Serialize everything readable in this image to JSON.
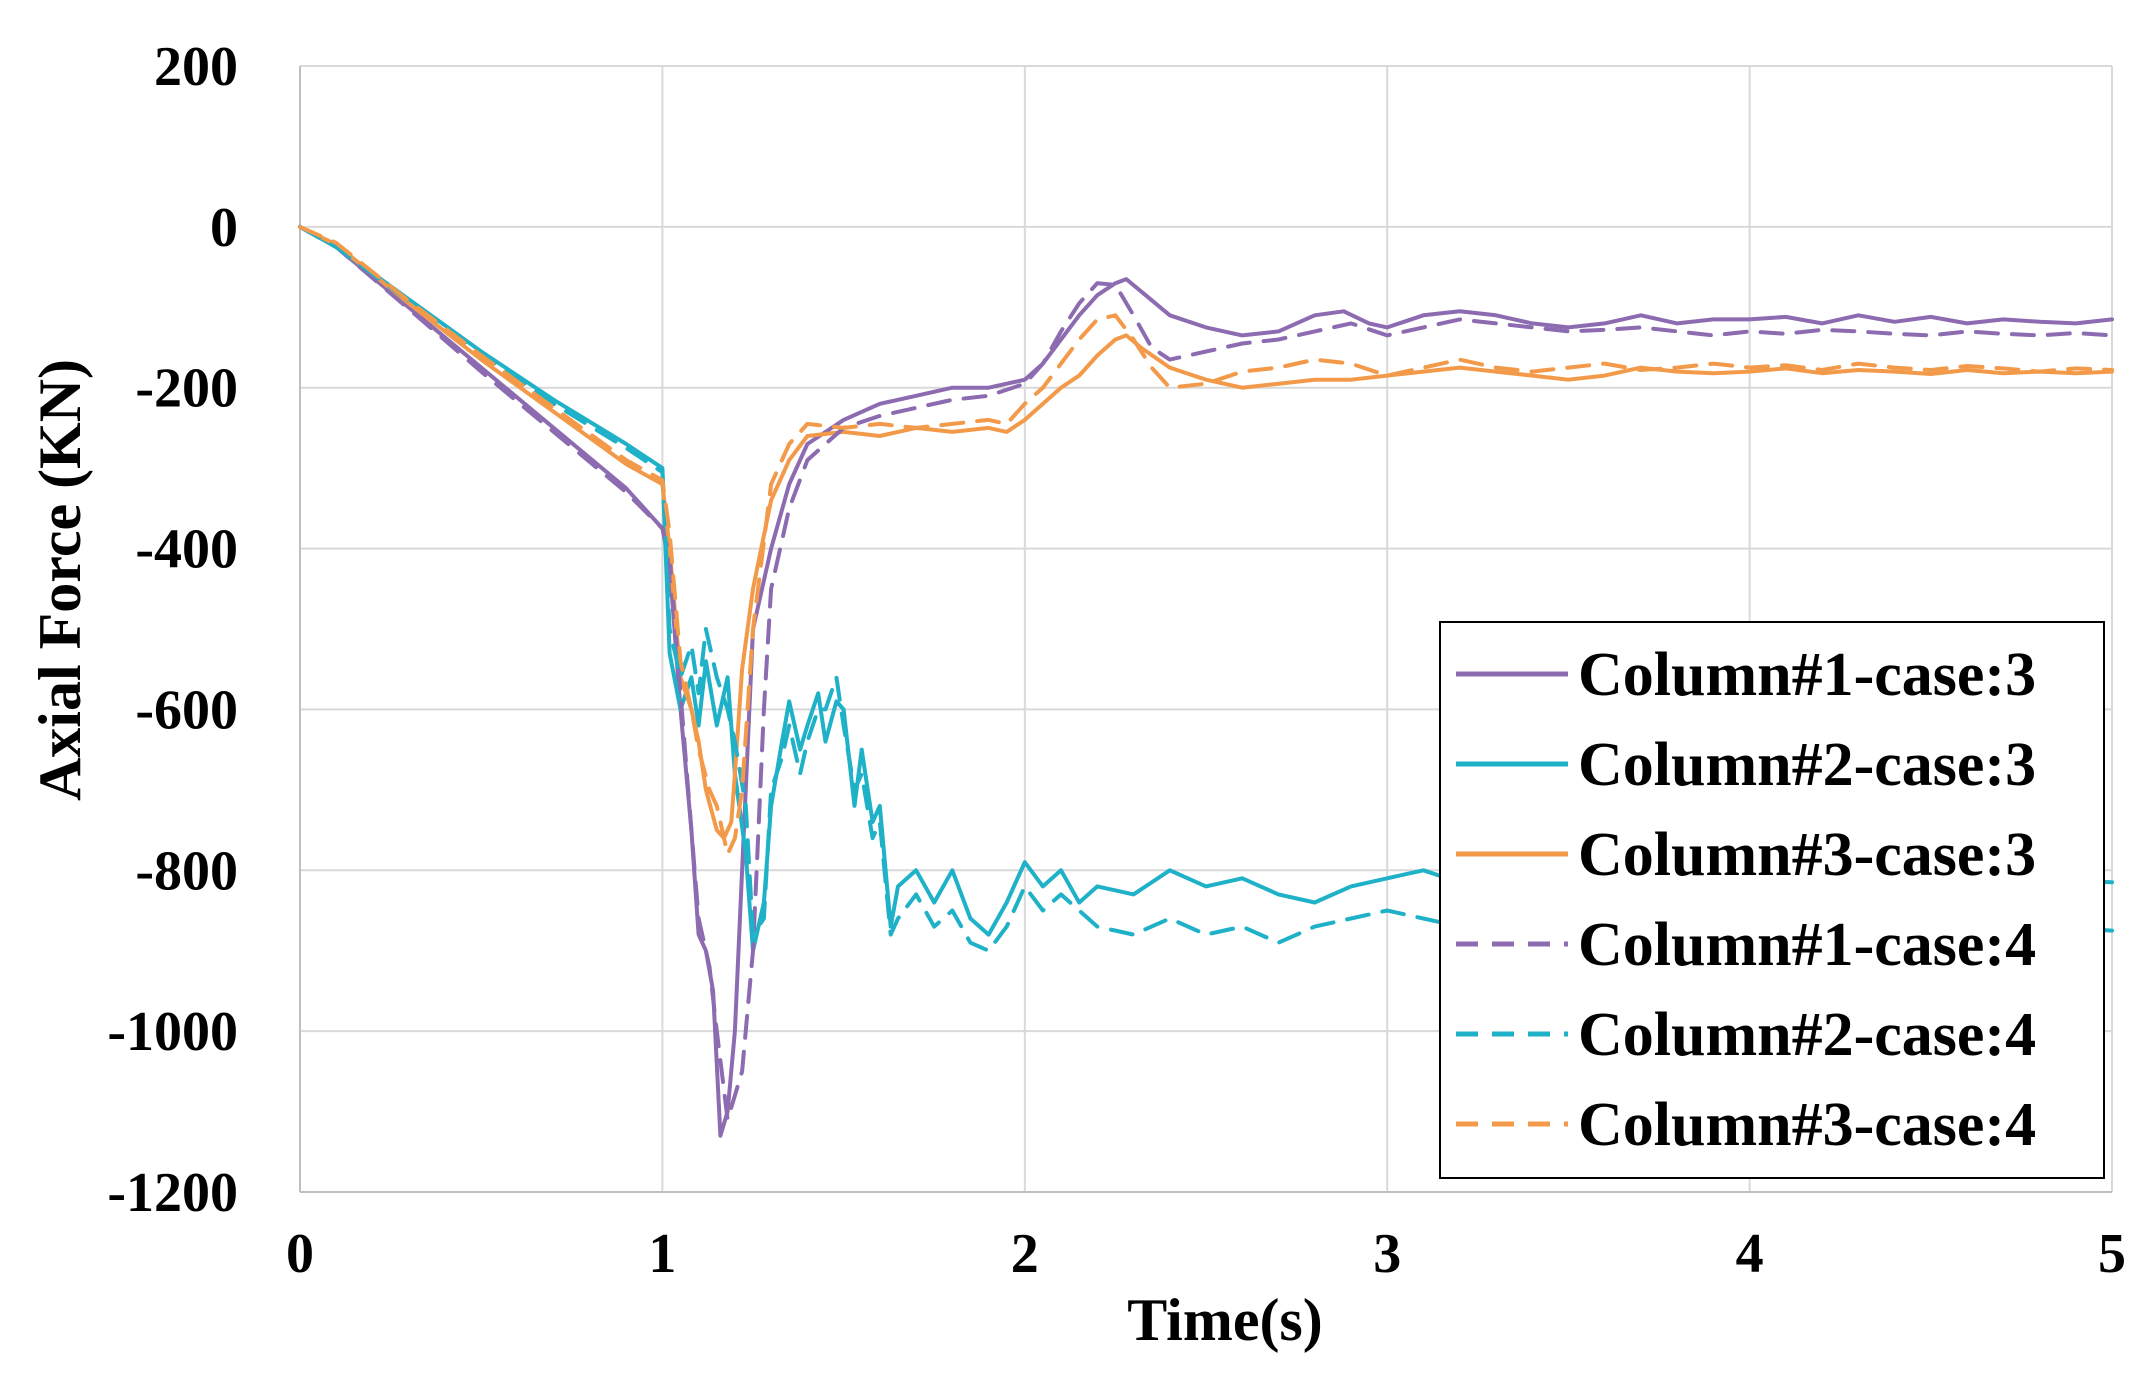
{
  "chart_data": {
    "type": "line",
    "xlabel": "Time(s)",
    "ylabel": "Axial Force (KN)",
    "xlim": [
      0,
      5
    ],
    "ylim": [
      -1200,
      200
    ],
    "x_ticks": [
      "0",
      "1",
      "2",
      "3",
      "4",
      "5"
    ],
    "y_ticks": [
      "200",
      "0",
      "-200",
      "-400",
      "-600",
      "-800",
      "-1000",
      "-1200"
    ],
    "grid": true,
    "legend_position": "right",
    "series": [
      {
        "name": "Column#1-case:3",
        "color": "#8c6bb1",
        "dash": "solid",
        "x": [
          0,
          0.1,
          0.3,
          0.5,
          0.7,
          0.9,
          1.0,
          1.02,
          1.05,
          1.08,
          1.1,
          1.12,
          1.14,
          1.16,
          1.18,
          1.2,
          1.22,
          1.25,
          1.3,
          1.35,
          1.4,
          1.5,
          1.6,
          1.7,
          1.8,
          1.9,
          2.0,
          2.05,
          2.1,
          2.15,
          2.2,
          2.25,
          2.28,
          2.32,
          2.4,
          2.5,
          2.6,
          2.7,
          2.8,
          2.88,
          2.95,
          3.0,
          3.1,
          3.2,
          3.3,
          3.4,
          3.5,
          3.6,
          3.7,
          3.8,
          3.9,
          4.0,
          4.1,
          4.2,
          4.3,
          4.4,
          4.5,
          4.6,
          4.7,
          4.8,
          4.9,
          5.0
        ],
        "y": [
          0,
          -25,
          -100,
          -175,
          -250,
          -325,
          -375,
          -420,
          -600,
          -750,
          -880,
          -900,
          -950,
          -1130,
          -1100,
          -1000,
          -800,
          -500,
          -400,
          -320,
          -270,
          -240,
          -220,
          -210,
          -200,
          -200,
          -190,
          -170,
          -140,
          -110,
          -85,
          -70,
          -65,
          -80,
          -110,
          -125,
          -135,
          -130,
          -110,
          -105,
          -120,
          -125,
          -110,
          -105,
          -110,
          -120,
          -125,
          -120,
          -110,
          -120,
          -115,
          -115,
          -112,
          -120,
          -110,
          -118,
          -112,
          -120,
          -115,
          -118,
          -120,
          -115
        ]
      },
      {
        "name": "Column#2-case:3",
        "color": "#1fb1c7",
        "dash": "solid",
        "x": [
          0,
          0.1,
          0.3,
          0.5,
          0.7,
          0.9,
          1.0,
          1.02,
          1.05,
          1.08,
          1.1,
          1.12,
          1.15,
          1.18,
          1.2,
          1.23,
          1.25,
          1.28,
          1.3,
          1.33,
          1.35,
          1.38,
          1.4,
          1.43,
          1.45,
          1.48,
          1.5,
          1.53,
          1.55,
          1.58,
          1.6,
          1.63,
          1.65,
          1.7,
          1.75,
          1.8,
          1.85,
          1.9,
          1.95,
          2.0,
          2.05,
          2.1,
          2.15,
          2.2,
          2.3,
          2.4,
          2.5,
          2.6,
          2.7,
          2.8,
          2.9,
          3.0,
          3.1,
          3.2,
          3.3,
          3.4,
          3.5,
          3.6,
          3.7,
          3.8,
          3.9,
          4.0,
          4.2,
          4.4,
          4.6,
          4.8,
          5.0
        ],
        "y": [
          0,
          -25,
          -90,
          -155,
          -215,
          -270,
          -300,
          -530,
          -600,
          -560,
          -620,
          -540,
          -620,
          -560,
          -680,
          -780,
          -900,
          -840,
          -720,
          -640,
          -590,
          -650,
          -620,
          -580,
          -640,
          -590,
          -600,
          -720,
          -650,
          -740,
          -720,
          -870,
          -820,
          -800,
          -840,
          -800,
          -860,
          -880,
          -840,
          -790,
          -820,
          -800,
          -840,
          -820,
          -830,
          -800,
          -820,
          -810,
          -830,
          -840,
          -820,
          -810,
          -800,
          -815,
          -810,
          -820,
          -815,
          -810,
          -805,
          -815,
          -810,
          -810,
          -812,
          -808,
          -815,
          -812,
          -815
        ]
      },
      {
        "name": "Column#3-case:3",
        "color": "#f39a4a",
        "dash": "solid",
        "x": [
          0,
          0.1,
          0.3,
          0.5,
          0.7,
          0.9,
          1.0,
          1.02,
          1.05,
          1.08,
          1.1,
          1.12,
          1.15,
          1.17,
          1.19,
          1.2,
          1.22,
          1.25,
          1.3,
          1.35,
          1.4,
          1.5,
          1.6,
          1.7,
          1.8,
          1.9,
          1.95,
          2.0,
          2.05,
          2.1,
          2.15,
          2.2,
          2.25,
          2.28,
          2.32,
          2.4,
          2.5,
          2.6,
          2.7,
          2.8,
          2.9,
          3.0,
          3.1,
          3.2,
          3.3,
          3.4,
          3.5,
          3.6,
          3.7,
          3.8,
          3.9,
          4.0,
          4.1,
          4.2,
          4.3,
          4.4,
          4.5,
          4.6,
          4.7,
          4.8,
          4.9,
          5.0
        ],
        "y": [
          0,
          -22,
          -95,
          -165,
          -230,
          -295,
          -320,
          -400,
          -560,
          -600,
          -640,
          -700,
          -750,
          -760,
          -740,
          -680,
          -550,
          -450,
          -340,
          -290,
          -260,
          -255,
          -260,
          -250,
          -255,
          -250,
          -255,
          -240,
          -220,
          -200,
          -185,
          -160,
          -140,
          -135,
          -150,
          -175,
          -190,
          -200,
          -195,
          -190,
          -190,
          -185,
          -180,
          -175,
          -180,
          -185,
          -190,
          -185,
          -175,
          -180,
          -182,
          -180,
          -176,
          -182,
          -178,
          -180,
          -183,
          -178,
          -182,
          -180,
          -182,
          -180
        ]
      },
      {
        "name": "Column#1-case:4",
        "color": "#8c6bb1",
        "dash": "dashed",
        "x": [
          0,
          0.1,
          0.3,
          0.5,
          0.7,
          0.9,
          1.0,
          1.02,
          1.05,
          1.08,
          1.1,
          1.13,
          1.15,
          1.18,
          1.2,
          1.22,
          1.25,
          1.28,
          1.3,
          1.35,
          1.4,
          1.5,
          1.6,
          1.7,
          1.8,
          1.9,
          2.0,
          2.05,
          2.1,
          2.15,
          2.2,
          2.25,
          2.3,
          2.35,
          2.4,
          2.5,
          2.6,
          2.7,
          2.8,
          2.9,
          3.0,
          3.1,
          3.2,
          3.3,
          3.4,
          3.5,
          3.6,
          3.7,
          3.8,
          3.9,
          4.0,
          4.1,
          4.2,
          4.3,
          4.4,
          4.5,
          4.6,
          4.7,
          4.8,
          4.9,
          5.0
        ],
        "y": [
          0,
          -25,
          -102,
          -180,
          -255,
          -330,
          -375,
          -410,
          -580,
          -750,
          -860,
          -920,
          -1000,
          -1110,
          -1080,
          -1050,
          -900,
          -600,
          -450,
          -350,
          -290,
          -250,
          -235,
          -225,
          -215,
          -210,
          -195,
          -170,
          -130,
          -95,
          -70,
          -72,
          -110,
          -150,
          -165,
          -155,
          -145,
          -140,
          -130,
          -120,
          -135,
          -125,
          -115,
          -120,
          -125,
          -130,
          -128,
          -125,
          -130,
          -135,
          -130,
          -133,
          -128,
          -130,
          -133,
          -135,
          -130,
          -133,
          -135,
          -132,
          -135
        ]
      },
      {
        "name": "Column#2-case:4",
        "color": "#1fb1c7",
        "dash": "dashed",
        "x": [
          0,
          0.1,
          0.3,
          0.5,
          0.7,
          0.9,
          1.0,
          1.02,
          1.05,
          1.08,
          1.1,
          1.12,
          1.15,
          1.18,
          1.2,
          1.23,
          1.25,
          1.28,
          1.3,
          1.33,
          1.35,
          1.38,
          1.4,
          1.43,
          1.45,
          1.48,
          1.5,
          1.53,
          1.55,
          1.58,
          1.6,
          1.63,
          1.65,
          1.7,
          1.75,
          1.8,
          1.85,
          1.9,
          1.95,
          2.0,
          2.05,
          2.1,
          2.2,
          2.3,
          2.4,
          2.5,
          2.6,
          2.7,
          2.8,
          2.9,
          3.0,
          3.1,
          3.2,
          3.3,
          3.4,
          3.5,
          3.6,
          3.7,
          3.8,
          3.9,
          4.0,
          4.2,
          4.4,
          4.6,
          4.8,
          5.0
        ],
        "y": [
          0,
          -25,
          -92,
          -158,
          -220,
          -275,
          -305,
          -500,
          -560,
          -520,
          -580,
          -500,
          -560,
          -600,
          -640,
          -720,
          -880,
          -860,
          -700,
          -660,
          -620,
          -680,
          -640,
          -600,
          -600,
          -560,
          -620,
          -700,
          -680,
          -760,
          -740,
          -880,
          -860,
          -830,
          -870,
          -850,
          -890,
          -900,
          -870,
          -820,
          -850,
          -830,
          -870,
          -880,
          -860,
          -880,
          -870,
          -890,
          -870,
          -860,
          -850,
          -860,
          -870,
          -865,
          -870,
          -860,
          -865,
          -860,
          -870,
          -865,
          -865,
          -860,
          -870,
          -865,
          -870,
          -875
        ]
      },
      {
        "name": "Column#3-case:4",
        "color": "#f39a4a",
        "dash": "dashed",
        "x": [
          0,
          0.1,
          0.3,
          0.5,
          0.7,
          0.9,
          1.0,
          1.02,
          1.05,
          1.08,
          1.1,
          1.13,
          1.15,
          1.18,
          1.2,
          1.22,
          1.25,
          1.3,
          1.35,
          1.4,
          1.5,
          1.6,
          1.7,
          1.8,
          1.9,
          1.95,
          2.0,
          2.05,
          2.1,
          2.15,
          2.2,
          2.25,
          2.3,
          2.35,
          2.4,
          2.5,
          2.6,
          2.7,
          2.8,
          2.9,
          3.0,
          3.1,
          3.2,
          3.3,
          3.4,
          3.5,
          3.6,
          3.7,
          3.8,
          3.9,
          4.0,
          4.1,
          4.2,
          4.3,
          4.4,
          4.5,
          4.6,
          4.7,
          4.8,
          4.9,
          5.0
        ],
        "y": [
          0,
          -20,
          -92,
          -160,
          -225,
          -290,
          -315,
          -380,
          -540,
          -600,
          -650,
          -700,
          -720,
          -780,
          -760,
          -700,
          -500,
          -320,
          -270,
          -245,
          -250,
          -245,
          -250,
          -245,
          -240,
          -245,
          -220,
          -200,
          -170,
          -140,
          -115,
          -110,
          -140,
          -175,
          -200,
          -195,
          -180,
          -175,
          -165,
          -170,
          -185,
          -175,
          -165,
          -175,
          -180,
          -175,
          -170,
          -178,
          -175,
          -170,
          -175,
          -172,
          -178,
          -170,
          -175,
          -178,
          -173,
          -176,
          -180,
          -176,
          -178
        ]
      }
    ]
  }
}
